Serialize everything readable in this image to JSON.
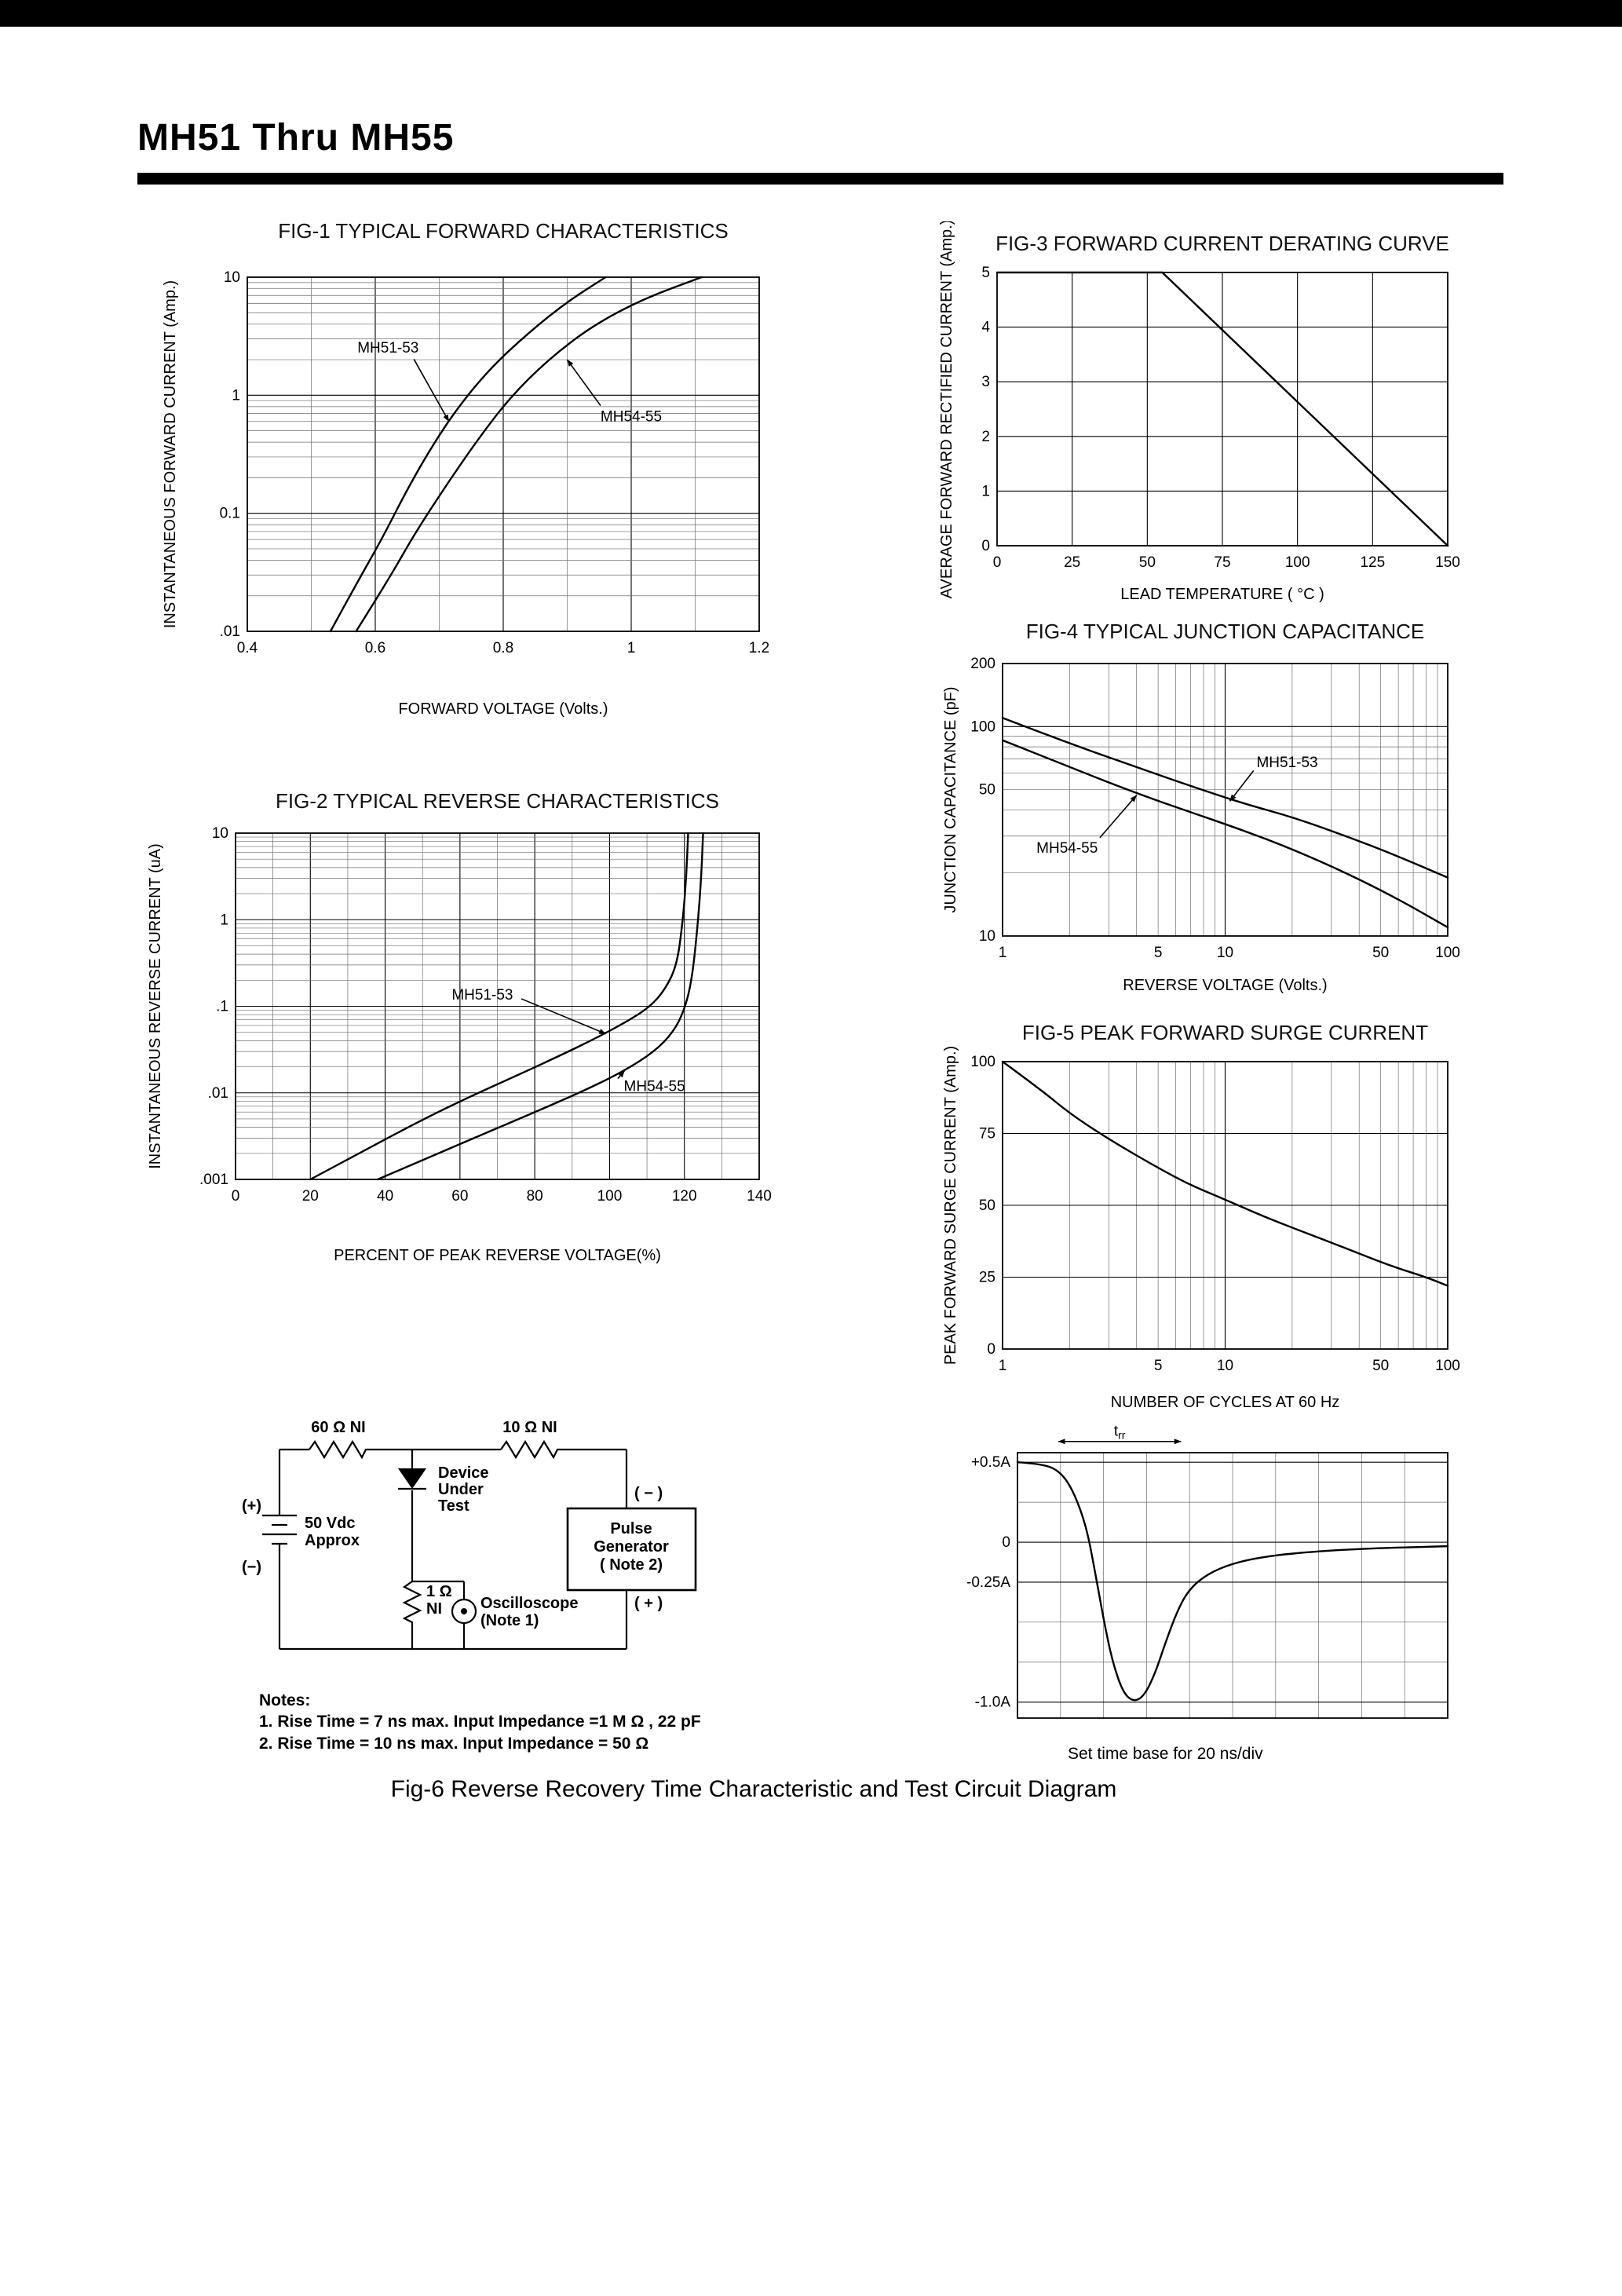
{
  "header": {
    "title": "MH51 Thru MH55"
  },
  "fig6_caption": "Fig-6 Reverse Recovery Time Characteristic and Test Circuit Diagram",
  "waveform": {
    "caption": "Set time base for 20  ns/div"
  },
  "notes": {
    "heading": "Notes:",
    "line1": "1. Rise Time = 7 ns max. Input Impedance =1 M Ω , 22 pF",
    "line2": "2. Rise Time = 10 ns max. Input Impedance = 50 Ω"
  },
  "circuit": {
    "r1": "60 Ω  NI",
    "r2": "10 Ω  NI",
    "dut1": "Device",
    "dut2": "Under",
    "dut3": "Test",
    "plus": "(+)",
    "minus": "(−)",
    "batt1": "50 Vdc",
    "batt2": "Approx",
    "r3a": "1 Ω",
    "r3b": "NI",
    "scope1": "Oscilloscope",
    "scope2": "(Note 1)",
    "pg1": "Pulse",
    "pg2": "Generator",
    "pg3": "( Note 2)",
    "pg_minus": "( − )",
    "pg_plus": "( + )"
  },
  "chart_data": [
    {
      "id": "fig1",
      "type": "line",
      "title": "FIG-1 TYPICAL FORWARD CHARACTERISTICS",
      "xlabel": "FORWARD VOLTAGE (Volts.)",
      "ylabel": "INSTANTANEOUS FORWARD CURRENT (Amp.)",
      "xscale": "linear",
      "yscale": "log",
      "xlim": [
        0.4,
        1.2
      ],
      "ylim": [
        0.01,
        10
      ],
      "xticks": [
        {
          "v": 0.4,
          "label": "0.4"
        },
        {
          "v": 0.6,
          "label": "0.6"
        },
        {
          "v": 0.8,
          "label": "0.8"
        },
        {
          "v": 1.0,
          "label": "1"
        },
        {
          "v": 1.2,
          "label": "1.2"
        }
      ],
      "xgrid_minor": [
        0.5,
        0.7,
        0.9,
        1.1
      ],
      "yticks": [
        {
          "v": 10,
          "label": "10"
        },
        {
          "v": 1,
          "label": "1"
        },
        {
          "v": 0.1,
          "label": "0.1"
        },
        {
          "v": 0.01,
          "label": ".01"
        }
      ],
      "series": [
        {
          "name": "MH51-53",
          "points": [
            [
              0.53,
              0.01
            ],
            [
              0.57,
              0.025
            ],
            [
              0.61,
              0.06
            ],
            [
              0.65,
              0.16
            ],
            [
              0.69,
              0.38
            ],
            [
              0.73,
              0.8
            ],
            [
              0.78,
              1.7
            ],
            [
              0.84,
              3.4
            ],
            [
              0.9,
              6.2
            ],
            [
              0.96,
              10
            ]
          ]
        },
        {
          "name": "MH54-55",
          "points": [
            [
              0.57,
              0.01
            ],
            [
              0.62,
              0.027
            ],
            [
              0.66,
              0.065
            ],
            [
              0.71,
              0.17
            ],
            [
              0.76,
              0.42
            ],
            [
              0.81,
              0.95
            ],
            [
              0.87,
              2.0
            ],
            [
              0.94,
              3.9
            ],
            [
              1.02,
              6.6
            ],
            [
              1.11,
              10
            ]
          ]
        }
      ],
      "annotations": [
        {
          "text": "MH51-53",
          "tx": 0.62,
          "ty": 2.3,
          "ax": 0.715,
          "ay": 0.6
        },
        {
          "text": "MH54-55",
          "tx": 1.0,
          "ty": 0.6,
          "ax": 0.9,
          "ay": 2.0
        }
      ]
    },
    {
      "id": "fig2",
      "type": "line",
      "title": "FIG-2 TYPICAL REVERSE CHARACTERISTICS",
      "xlabel": "PERCENT OF PEAK REVERSE VOLTAGE(%)",
      "ylabel": "INSTANTANEOUS REVERSE CURRENT (uA)",
      "xscale": "linear",
      "yscale": "log",
      "xlim": [
        0,
        140
      ],
      "ylim": [
        0.001,
        10
      ],
      "xticks": [
        {
          "v": 0,
          "label": "0"
        },
        {
          "v": 20,
          "label": "20"
        },
        {
          "v": 40,
          "label": "40"
        },
        {
          "v": 60,
          "label": "60"
        },
        {
          "v": 80,
          "label": "80"
        },
        {
          "v": 100,
          "label": "100"
        },
        {
          "v": 120,
          "label": "120"
        },
        {
          "v": 140,
          "label": "140"
        }
      ],
      "xgrid_minor": [
        10,
        30,
        50,
        70,
        90,
        110,
        130
      ],
      "yticks": [
        {
          "v": 10,
          "label": "10"
        },
        {
          "v": 1,
          "label": "1"
        },
        {
          "v": 0.1,
          "label": ".1"
        },
        {
          "v": 0.01,
          "label": ".01"
        },
        {
          "v": 0.001,
          "label": ".001"
        }
      ],
      "series": [
        {
          "name": "MH51-53",
          "points": [
            [
              20,
              0.001
            ],
            [
              33,
              0.002
            ],
            [
              47,
              0.0042
            ],
            [
              60,
              0.008
            ],
            [
              74,
              0.015
            ],
            [
              86,
              0.026
            ],
            [
              96,
              0.042
            ],
            [
              105,
              0.068
            ],
            [
              111,
              0.1
            ],
            [
              115,
              0.16
            ],
            [
              118,
              0.3
            ],
            [
              119.5,
              0.9
            ],
            [
              120.5,
              3
            ],
            [
              121,
              10
            ]
          ]
        },
        {
          "name": "MH54-55",
          "points": [
            [
              38,
              0.001
            ],
            [
              53,
              0.0019
            ],
            [
              68,
              0.0036
            ],
            [
              82,
              0.0065
            ],
            [
              94,
              0.011
            ],
            [
              104,
              0.018
            ],
            [
              112,
              0.03
            ],
            [
              117,
              0.05
            ],
            [
              120,
              0.09
            ],
            [
              122,
              0.2
            ],
            [
              123.5,
              0.8
            ],
            [
              124.5,
              3
            ],
            [
              125,
              10
            ]
          ]
        }
      ],
      "annotations": [
        {
          "text": "MH51-53",
          "tx": 66,
          "ty": 0.12,
          "ax": 99,
          "ay": 0.048
        },
        {
          "text": "MH54-55",
          "tx": 112,
          "ty": 0.0105,
          "ax": 104,
          "ay": 0.018
        }
      ]
    },
    {
      "id": "fig3",
      "type": "line",
      "title": "FIG-3 FORWARD CURRENT DERATING CURVE",
      "xlabel": "LEAD TEMPERATURE ( °C )",
      "ylabel": "AVERAGE FORWARD RECTIFIED CURRENT (Amp.)",
      "xscale": "linear",
      "yscale": "linear",
      "xlim": [
        0,
        150
      ],
      "ylim": [
        0,
        5
      ],
      "xticks": [
        {
          "v": 0,
          "label": "0"
        },
        {
          "v": 25,
          "label": "25"
        },
        {
          "v": 50,
          "label": "50"
        },
        {
          "v": 75,
          "label": "75"
        },
        {
          "v": 100,
          "label": "100"
        },
        {
          "v": 125,
          "label": "125"
        },
        {
          "v": 150,
          "label": "150"
        }
      ],
      "yticks": [
        {
          "v": 0,
          "label": "0"
        },
        {
          "v": 1,
          "label": "1"
        },
        {
          "v": 2,
          "label": "2"
        },
        {
          "v": 3,
          "label": "3"
        },
        {
          "v": 4,
          "label": "4"
        },
        {
          "v": 5,
          "label": "5"
        }
      ],
      "series": [
        {
          "name": "derating",
          "points": [
            [
              0,
              5
            ],
            [
              55,
              5
            ],
            [
              150,
              0
            ]
          ]
        }
      ]
    },
    {
      "id": "fig4",
      "type": "line",
      "title": "FIG-4 TYPICAL JUNCTION CAPACITANCE",
      "xlabel": "REVERSE VOLTAGE (Volts.)",
      "ylabel": "JUNCTION CAPACITANCE (pF)",
      "xscale": "log",
      "yscale": "log",
      "xlim": [
        1,
        100
      ],
      "ylim": [
        10,
        200
      ],
      "xticks": [
        {
          "v": 1,
          "label": "1"
        },
        {
          "v": 5,
          "label": "5"
        },
        {
          "v": 10,
          "label": "10"
        },
        {
          "v": 50,
          "label": "50"
        },
        {
          "v": 100,
          "label": "100"
        }
      ],
      "yticks": [
        {
          "v": 200,
          "label": "200"
        },
        {
          "v": 100,
          "label": "100"
        },
        {
          "v": 50,
          "label": "50"
        },
        {
          "v": 10,
          "label": "10"
        }
      ],
      "series": [
        {
          "name": "MH51-53",
          "points": [
            [
              1,
              110
            ],
            [
              2,
              83
            ],
            [
              4,
              64
            ],
            [
              7,
              52
            ],
            [
              12,
              43
            ],
            [
              20,
              37
            ],
            [
              35,
              30
            ],
            [
              60,
              24
            ],
            [
              100,
              19
            ]
          ]
        },
        {
          "name": "MH54-55",
          "points": [
            [
              1,
              86
            ],
            [
              2,
              64
            ],
            [
              4,
              48
            ],
            [
              7,
              39
            ],
            [
              12,
              32
            ],
            [
              20,
              26
            ],
            [
              35,
              20
            ],
            [
              60,
              15
            ],
            [
              100,
              11
            ]
          ]
        }
      ],
      "annotations": [
        {
          "text": "MH51-53",
          "tx": 19,
          "ty": 64,
          "ax": 10.5,
          "ay": 44
        },
        {
          "text": "MH54-55",
          "tx": 1.95,
          "ty": 25,
          "ax": 4,
          "ay": 47
        }
      ]
    },
    {
      "id": "fig5",
      "type": "line",
      "title": "FIG-5 PEAK FORWARD SURGE CURRENT",
      "xlabel": "NUMBER OF CYCLES AT 60 Hz",
      "ylabel": "PEAK FORWARD SURGE CURRENT (Amp.)",
      "xscale": "log",
      "yscale": "linear",
      "xlim": [
        1,
        100
      ],
      "ylim": [
        0,
        100
      ],
      "xticks": [
        {
          "v": 1,
          "label": "1"
        },
        {
          "v": 5,
          "label": "5"
        },
        {
          "v": 10,
          "label": "10"
        },
        {
          "v": 50,
          "label": "50"
        },
        {
          "v": 100,
          "label": "100"
        }
      ],
      "yticks": [
        {
          "v": 0,
          "label": "0"
        },
        {
          "v": 25,
          "label": "25"
        },
        {
          "v": 50,
          "label": "50"
        },
        {
          "v": 75,
          "label": "75"
        },
        {
          "v": 100,
          "label": "100"
        }
      ],
      "series": [
        {
          "name": "surge",
          "points": [
            [
              1,
              100
            ],
            [
              1.5,
              90
            ],
            [
              2,
              82
            ],
            [
              3,
              73
            ],
            [
              5,
              63
            ],
            [
              7,
              57
            ],
            [
              10,
              52
            ],
            [
              15,
              46
            ],
            [
              22,
              41
            ],
            [
              35,
              35
            ],
            [
              55,
              29
            ],
            [
              80,
              25
            ],
            [
              100,
              22
            ]
          ]
        }
      ]
    },
    {
      "id": "wave",
      "type": "line",
      "title": null,
      "xscale": "linear",
      "yscale": "linear",
      "xlim": [
        0,
        10
      ],
      "ylim": [
        -1.1,
        0.56
      ],
      "xgrid_minor": [
        1,
        2,
        3,
        4,
        5,
        6,
        7,
        8,
        9
      ],
      "yticks": [
        {
          "v": 0.5,
          "label": "+0.5A"
        },
        {
          "v": 0,
          "label": "0"
        },
        {
          "v": -0.25,
          "label": "-0.25A"
        },
        {
          "v": -1.0,
          "label": "-1.0A"
        }
      ],
      "ygrid_minor": [
        0.25,
        -0.5,
        -0.75
      ],
      "series": [
        {
          "name": "reverse-recovery",
          "points": [
            [
              0,
              0.5
            ],
            [
              0.6,
              0.49
            ],
            [
              1.0,
              0.44
            ],
            [
              1.3,
              0.32
            ],
            [
              1.6,
              0.1
            ],
            [
              1.8,
              -0.18
            ],
            [
              2.0,
              -0.48
            ],
            [
              2.2,
              -0.74
            ],
            [
              2.45,
              -0.94
            ],
            [
              2.7,
              -1.0
            ],
            [
              2.95,
              -0.96
            ],
            [
              3.2,
              -0.82
            ],
            [
              3.45,
              -0.62
            ],
            [
              3.7,
              -0.44
            ],
            [
              3.95,
              -0.31
            ],
            [
              4.3,
              -0.22
            ],
            [
              4.8,
              -0.15
            ],
            [
              5.5,
              -0.1
            ],
            [
              6.5,
              -0.066
            ],
            [
              8,
              -0.04
            ],
            [
              10,
              -0.025
            ]
          ]
        }
      ],
      "measure": {
        "label": "trr",
        "x1": 0.95,
        "x2": 3.8,
        "y": 0.63
      }
    }
  ]
}
